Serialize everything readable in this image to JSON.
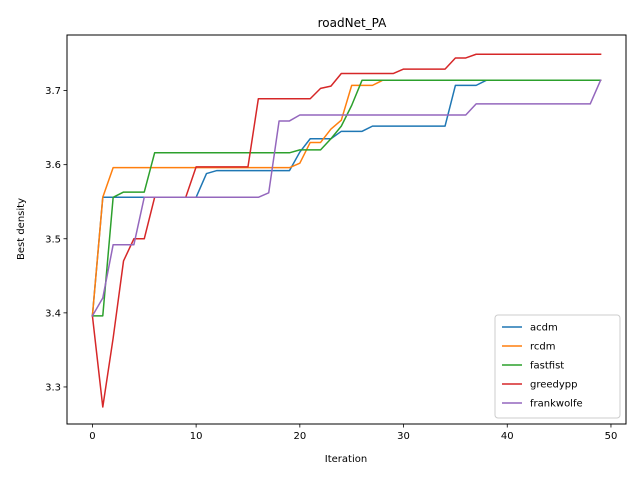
{
  "chart_data": {
    "type": "line",
    "title": "roadNet_PA",
    "xlabel": "Iteration",
    "ylabel": "Best density",
    "xlim": [
      -2.45,
      51.45
    ],
    "ylim": [
      3.25,
      3.775
    ],
    "xticks": [
      0,
      10,
      20,
      30,
      40,
      50
    ],
    "yticks": [
      3.3,
      3.4,
      3.5,
      3.6,
      3.7
    ],
    "xtick_labels": [
      "0",
      "10",
      "20",
      "30",
      "40",
      "50"
    ],
    "ytick_labels": [
      "3.3",
      "3.4",
      "3.5",
      "3.6",
      "3.7"
    ],
    "legend_position": "lower-right",
    "series": [
      {
        "name": "acdm",
        "color": "#1f77b4",
        "x": [
          0,
          1,
          2,
          3,
          4,
          5,
          6,
          7,
          8,
          9,
          10,
          11,
          12,
          13,
          14,
          15,
          16,
          17,
          18,
          19,
          20,
          21,
          22,
          23,
          24,
          25,
          26,
          27,
          28,
          29,
          30,
          31,
          32,
          33,
          34,
          35,
          36,
          37,
          38,
          39,
          40,
          41,
          42,
          43,
          44,
          45,
          46,
          47,
          48,
          49
        ],
        "values": [
          3.396,
          3.556,
          3.556,
          3.556,
          3.556,
          3.556,
          3.556,
          3.556,
          3.556,
          3.556,
          3.556,
          3.588,
          3.592,
          3.592,
          3.592,
          3.592,
          3.592,
          3.592,
          3.592,
          3.592,
          3.617,
          3.635,
          3.635,
          3.635,
          3.645,
          3.645,
          3.645,
          3.652,
          3.652,
          3.652,
          3.652,
          3.652,
          3.652,
          3.652,
          3.652,
          3.707,
          3.707,
          3.707,
          3.714,
          3.714,
          3.714,
          3.714,
          3.714,
          3.714,
          3.714,
          3.714,
          3.714,
          3.714,
          3.714,
          3.714
        ]
      },
      {
        "name": "rcdm",
        "color": "#ff7f0e",
        "x": [
          0,
          1,
          2,
          3,
          4,
          5,
          6,
          7,
          8,
          9,
          10,
          11,
          12,
          13,
          14,
          15,
          16,
          17,
          18,
          19,
          20,
          21,
          22,
          23,
          24,
          25,
          26,
          27,
          28,
          29,
          30,
          31,
          32,
          33,
          34,
          35,
          36,
          37,
          38,
          39,
          40,
          41,
          42,
          43,
          44,
          45,
          46,
          47,
          48,
          49
        ],
        "values": [
          3.396,
          3.556,
          3.596,
          3.596,
          3.596,
          3.596,
          3.596,
          3.596,
          3.596,
          3.596,
          3.596,
          3.596,
          3.596,
          3.596,
          3.596,
          3.596,
          3.596,
          3.596,
          3.596,
          3.596,
          3.602,
          3.63,
          3.63,
          3.648,
          3.66,
          3.707,
          3.707,
          3.707,
          3.714,
          3.714,
          3.714,
          3.714,
          3.714,
          3.714,
          3.714,
          3.714,
          3.714,
          3.714,
          3.714,
          3.714,
          3.714,
          3.714,
          3.714,
          3.714,
          3.714,
          3.714,
          3.714,
          3.714,
          3.714,
          3.714
        ]
      },
      {
        "name": "fastfist",
        "color": "#2ca02c",
        "x": [
          0,
          1,
          2,
          3,
          4,
          5,
          6,
          7,
          8,
          9,
          10,
          11,
          12,
          13,
          14,
          15,
          16,
          17,
          18,
          19,
          20,
          21,
          22,
          23,
          24,
          25,
          26,
          27,
          28,
          29,
          30,
          31,
          32,
          33,
          34,
          35,
          36,
          37,
          38,
          39,
          40,
          41,
          42,
          43,
          44,
          45,
          46,
          47,
          48,
          49
        ],
        "values": [
          3.396,
          3.396,
          3.556,
          3.563,
          3.563,
          3.563,
          3.616,
          3.616,
          3.616,
          3.616,
          3.616,
          3.616,
          3.616,
          3.616,
          3.616,
          3.616,
          3.616,
          3.616,
          3.616,
          3.616,
          3.62,
          3.62,
          3.62,
          3.635,
          3.652,
          3.68,
          3.714,
          3.714,
          3.714,
          3.714,
          3.714,
          3.714,
          3.714,
          3.714,
          3.714,
          3.714,
          3.714,
          3.714,
          3.714,
          3.714,
          3.714,
          3.714,
          3.714,
          3.714,
          3.714,
          3.714,
          3.714,
          3.714,
          3.714,
          3.714
        ]
      },
      {
        "name": "greedypp",
        "color": "#d62728",
        "x": [
          0,
          1,
          2,
          3,
          4,
          5,
          6,
          7,
          8,
          9,
          10,
          11,
          12,
          13,
          14,
          15,
          16,
          17,
          18,
          19,
          20,
          21,
          22,
          23,
          24,
          25,
          26,
          27,
          28,
          29,
          30,
          31,
          32,
          33,
          34,
          35,
          36,
          37,
          38,
          39,
          40,
          41,
          42,
          43,
          44,
          45,
          46,
          47,
          48,
          49
        ],
        "values": [
          3.396,
          3.273,
          3.366,
          3.47,
          3.5,
          3.5,
          3.556,
          3.556,
          3.556,
          3.556,
          3.597,
          3.597,
          3.597,
          3.597,
          3.597,
          3.597,
          3.689,
          3.689,
          3.689,
          3.689,
          3.689,
          3.689,
          3.703,
          3.706,
          3.723,
          3.723,
          3.723,
          3.723,
          3.723,
          3.723,
          3.729,
          3.729,
          3.729,
          3.729,
          3.729,
          3.744,
          3.744,
          3.749,
          3.749,
          3.749,
          3.749,
          3.749,
          3.749,
          3.749,
          3.749,
          3.749,
          3.749,
          3.749,
          3.749,
          3.749
        ]
      },
      {
        "name": "frankwolfe",
        "color": "#9467bd",
        "x": [
          0,
          1,
          2,
          3,
          4,
          5,
          6,
          7,
          8,
          9,
          10,
          11,
          12,
          13,
          14,
          15,
          16,
          17,
          18,
          19,
          20,
          21,
          22,
          23,
          24,
          25,
          26,
          27,
          28,
          29,
          30,
          31,
          32,
          33,
          34,
          35,
          36,
          37,
          38,
          39,
          40,
          41,
          42,
          43,
          44,
          45,
          46,
          47,
          48,
          49
        ],
        "values": [
          3.396,
          3.42,
          3.492,
          3.492,
          3.492,
          3.556,
          3.556,
          3.556,
          3.556,
          3.556,
          3.556,
          3.556,
          3.556,
          3.556,
          3.556,
          3.556,
          3.556,
          3.562,
          3.659,
          3.659,
          3.667,
          3.667,
          3.667,
          3.667,
          3.667,
          3.667,
          3.667,
          3.667,
          3.667,
          3.667,
          3.667,
          3.667,
          3.667,
          3.667,
          3.667,
          3.667,
          3.667,
          3.682,
          3.682,
          3.682,
          3.682,
          3.682,
          3.682,
          3.682,
          3.682,
          3.682,
          3.682,
          3.682,
          3.682,
          3.714
        ]
      }
    ]
  }
}
